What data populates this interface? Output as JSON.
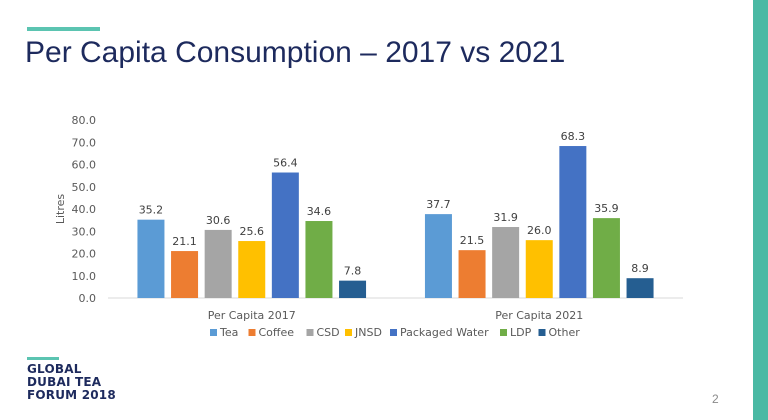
{
  "slide": {
    "title": "Per Capita Consumption – 2017 vs 2021",
    "logo_lines": [
      "GLOBAL",
      "DUBAI TEA",
      "FORUM 2018"
    ],
    "page_number": "2",
    "accent_color": "#5bc4b1",
    "title_color": "#1d2a5d"
  },
  "chart_data": {
    "type": "bar",
    "title": "",
    "xlabel": "",
    "ylabel": "Litres",
    "categories": [
      "Per Capita 2017",
      "Per Capita 2021"
    ],
    "ylim": [
      0,
      80
    ],
    "yticks": [
      "0.0",
      "10.0",
      "20.0",
      "30.0",
      "40.0",
      "50.0",
      "60.0",
      "70.0",
      "80.0"
    ],
    "grid": false,
    "legend_position": "bottom",
    "data_labels": true,
    "series": [
      {
        "name": "Tea",
        "values": [
          35.2,
          37.7
        ],
        "labels": [
          "35.2",
          "37.7"
        ],
        "color": "#5b9bd5"
      },
      {
        "name": "Coffee",
        "values": [
          21.1,
          21.5
        ],
        "labels": [
          "21.1",
          "21.5"
        ],
        "color": "#ed7d31"
      },
      {
        "name": "CSD",
        "values": [
          30.6,
          31.9
        ],
        "labels": [
          "30.6",
          "31.9"
        ],
        "color": "#a5a5a5"
      },
      {
        "name": "JNSD",
        "values": [
          25.6,
          26.0
        ],
        "labels": [
          "25.6",
          "26.0"
        ],
        "color": "#ffc000"
      },
      {
        "name": "Packaged Water",
        "values": [
          56.4,
          68.3
        ],
        "labels": [
          "56.4",
          "68.3"
        ],
        "color": "#4472c4"
      },
      {
        "name": "LDP",
        "values": [
          34.6,
          35.9
        ],
        "labels": [
          "34.6",
          "35.9"
        ],
        "color": "#70ad47"
      },
      {
        "name": "Other",
        "values": [
          7.8,
          8.9
        ],
        "labels": [
          "7.8",
          "8.9"
        ],
        "color": "#255e91"
      }
    ]
  }
}
